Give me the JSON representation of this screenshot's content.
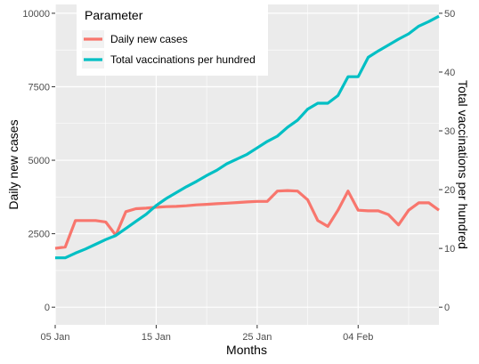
{
  "chart_data": {
    "type": "line",
    "xlabel": "Months",
    "ylabel": "Daily new cases",
    "ylabel_right": "Total vaccinations per hundred",
    "x_start": "2021-01-05",
    "x_range": [
      0,
      38
    ],
    "x_tick_labels": [
      {
        "label": "05 Jan",
        "day": 0
      },
      {
        "label": "15 Jan",
        "day": 10
      },
      {
        "label": "25 Jan",
        "day": 20
      },
      {
        "label": "04 Feb",
        "day": 30
      }
    ],
    "ylim_left": [
      -600,
      10300
    ],
    "yticks_left": [
      0,
      2500,
      5000,
      7500,
      10000
    ],
    "ylim_right": [
      -3,
      51.5
    ],
    "yticks_right": [
      0,
      10,
      20,
      30,
      40,
      50
    ],
    "grid": true,
    "legend": {
      "title": "Parameter",
      "position": "top-left"
    },
    "series": [
      {
        "name": "Daily new cases",
        "axis": "left",
        "color": "#F8766D",
        "x": [
          0,
          1,
          2,
          3,
          4,
          5,
          6,
          7,
          8,
          9,
          10,
          11,
          12,
          13,
          14,
          15,
          16,
          17,
          18,
          19,
          20,
          21,
          22,
          23,
          24,
          25,
          26,
          27,
          28,
          29,
          30,
          31,
          32,
          33,
          34,
          35,
          36,
          37,
          38
        ],
        "values": [
          2000,
          2050,
          2950,
          2950,
          2950,
          2900,
          2450,
          3250,
          3350,
          3370,
          3400,
          3420,
          3430,
          3450,
          3480,
          3500,
          3520,
          3540,
          3560,
          3580,
          3600,
          3600,
          3950,
          3970,
          3950,
          3650,
          2950,
          2750,
          3300,
          3950,
          3300,
          3280,
          3280,
          3150,
          2800,
          3300,
          3550,
          3550,
          3300
        ]
      },
      {
        "name": "Total vaccinations per hundred",
        "axis": "right",
        "color": "#00BFC4",
        "x": [
          0,
          1,
          2,
          3,
          4,
          5,
          6,
          7,
          8,
          9,
          10,
          11,
          12,
          13,
          14,
          15,
          16,
          17,
          18,
          19,
          20,
          21,
          22,
          23,
          24,
          25,
          26,
          27,
          28,
          29,
          30,
          31,
          32,
          33,
          34,
          35,
          36,
          37,
          38
        ],
        "values": [
          8.4,
          8.4,
          9.2,
          9.9,
          10.7,
          11.5,
          12.2,
          13.4,
          14.6,
          15.8,
          17.3,
          18.5,
          19.5,
          20.5,
          21.4,
          22.4,
          23.3,
          24.4,
          25.2,
          26.0,
          27.1,
          28.2,
          29.1,
          30.6,
          31.8,
          33.7,
          34.7,
          34.7,
          36.0,
          39.2,
          39.2,
          42.5,
          43.6,
          44.6,
          45.6,
          46.5,
          47.8,
          48.6,
          49.5
        ]
      }
    ]
  }
}
